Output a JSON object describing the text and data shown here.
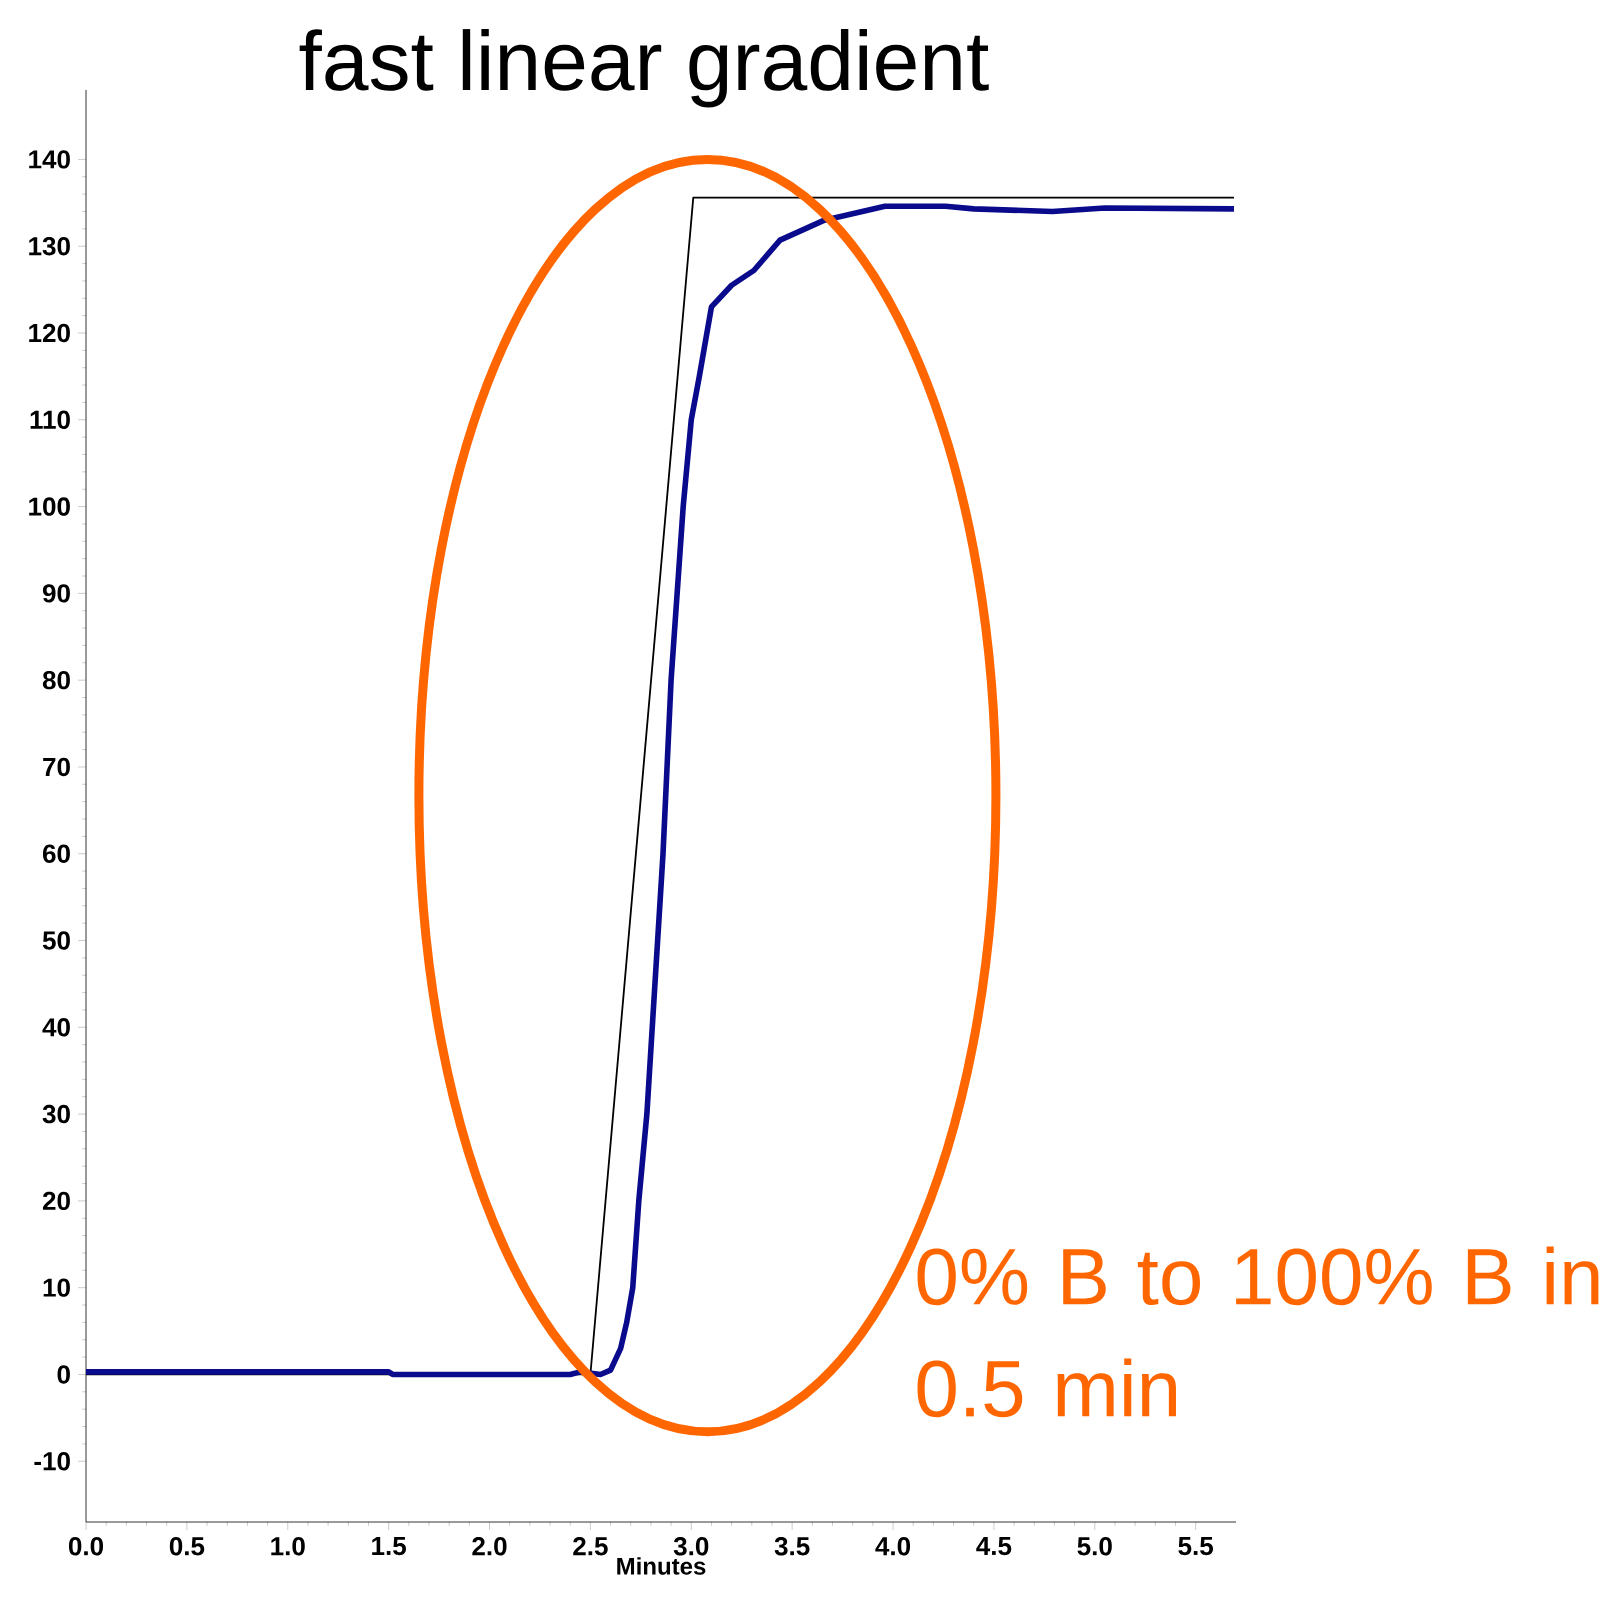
{
  "chart_data": {
    "type": "line",
    "title": "fast linear gradient",
    "xlabel": "Minutes",
    "annotations": [
      "0% B to 100% B in 0.5 min"
    ],
    "series": [
      {
        "color": "#000000",
        "x": [
          0,
          2.5,
          3.01,
          5.69
        ],
        "values": [
          0,
          0,
          135.6,
          135.6
        ]
      },
      {
        "color": "#0a0a8c",
        "x": [
          0,
          1.5,
          1.52,
          2.4,
          2.45,
          2.55,
          2.6,
          2.65,
          2.68,
          2.71,
          2.74,
          2.78,
          2.82,
          2.86,
          2.9,
          2.96,
          3.0,
          3.04,
          3.1,
          3.2,
          3.31,
          3.44,
          3.66,
          3.96,
          4.26,
          4.4,
          4.79,
          5.05,
          5.69
        ],
        "values": [
          0.3,
          0.3,
          0,
          0,
          0.3,
          0,
          0.5,
          3,
          6,
          10,
          20,
          30,
          45,
          60,
          80,
          100,
          110,
          115,
          123,
          125.5,
          127.2,
          130.7,
          133,
          134.6,
          134.6,
          134.3,
          134,
          134.4,
          134.3
        ]
      }
    ],
    "xlim": [
      0,
      5.7
    ],
    "ylim": [
      -17,
      148
    ],
    "xticks": [
      {
        "value": 0,
        "label": "0.0"
      },
      {
        "value": 0.5,
        "label": "0.5"
      },
      {
        "value": 1,
        "label": "1.0"
      },
      {
        "value": 1.5,
        "label": "1.5"
      },
      {
        "value": 2,
        "label": "2.0"
      },
      {
        "value": 2.5,
        "label": "2.5"
      },
      {
        "value": 3,
        "label": "3.0"
      },
      {
        "value": 3.5,
        "label": "3.5"
      },
      {
        "value": 4,
        "label": "4.0"
      },
      {
        "value": 4.5,
        "label": "4.5"
      },
      {
        "value": 5,
        "label": "5.0"
      },
      {
        "value": 5.5,
        "label": "5.5"
      }
    ],
    "yticks": [
      -10,
      0,
      10,
      20,
      30,
      40,
      50,
      60,
      70,
      80,
      90,
      100,
      110,
      120,
      130,
      140
    ],
    "grid": false
  }
}
